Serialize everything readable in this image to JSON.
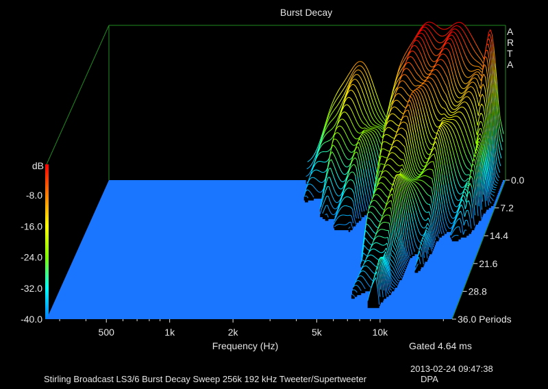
{
  "chart_data": {
    "type": "waterfall-3d",
    "title": "Burst Decay",
    "xlabel": "Frequency (Hz)",
    "x_scale": "log",
    "x_ticks": [
      "500",
      "1k",
      "2k",
      "5k",
      "10k"
    ],
    "x_tick_values": [
      500,
      1000,
      2000,
      5000,
      10000
    ],
    "y_axis_title": "dB",
    "y_ticks": [
      "-8.0",
      "-16.0",
      "-24.0",
      "-32.0",
      "-40.0"
    ],
    "z_ticks": [
      "0.0",
      "7.2",
      "14.4",
      "21.6",
      "28.8",
      "36.0 Periods"
    ],
    "ylim": [
      -40,
      0
    ],
    "zlim": [
      0,
      36
    ],
    "colormap": [
      "#ff0000",
      "#ff8000",
      "#ffff00",
      "#80ff00",
      "#00ffff",
      "#0080ff"
    ],
    "floor_color": "#1a75ff",
    "frame_color": "#1f8c1f",
    "surface_peaks": [
      {
        "frequency_hz": 2500,
        "decay_periods": 0,
        "level_db": -33
      },
      {
        "frequency_hz": 4000,
        "decay_periods": 0,
        "level_db": -10
      },
      {
        "frequency_hz": 7000,
        "decay_periods": 0,
        "level_db": -3
      },
      {
        "frequency_hz": 12000,
        "decay_periods": 0,
        "level_db": 0
      },
      {
        "frequency_hz": 18000,
        "decay_periods": 0,
        "level_db": -2
      },
      {
        "frequency_hz": 8000,
        "decay_periods": 14,
        "level_db": -32
      },
      {
        "frequency_hz": 9500,
        "decay_periods": 21,
        "level_db": -30
      }
    ]
  },
  "labels": {
    "brand": [
      "A",
      "R",
      "T",
      "A"
    ],
    "gating": "Gated 4.64 ms",
    "timestamp": "2013-02-24  09:47:38",
    "caption": "Stirling Broadcast LS3/6 Burst Decay Sweep 256k 192 kHz Tweeter/Supertweeter",
    "author": "DPA"
  }
}
